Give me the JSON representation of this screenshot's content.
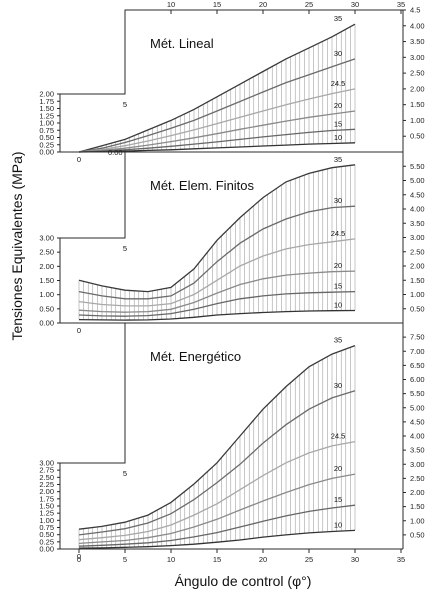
{
  "figure": {
    "ylabel": "Tensiones Equivalentes (MPa)",
    "xlabel": "Ángulo de control (φ°)",
    "top_x_ticks": [
      "10",
      "15",
      "20",
      "25",
      "30",
      "35"
    ],
    "bottom_x_ticks": [
      "0",
      "5",
      "10",
      "15",
      "20",
      "25",
      "30",
      "35"
    ]
  },
  "chart_data": [
    {
      "type": "line",
      "title": "Mét. Lineal",
      "x": [
        0,
        2.5,
        5,
        7.5,
        10,
        12.5,
        15,
        17.5,
        20,
        22.5,
        25,
        27.5,
        30
      ],
      "series": [
        {
          "name": "35",
          "values": [
            0,
            0.2,
            0.4,
            0.7,
            1.0,
            1.35,
            1.75,
            2.15,
            2.55,
            2.95,
            3.3,
            3.65,
            4.05
          ]
        },
        {
          "name": "30",
          "values": [
            0,
            0.12,
            0.3,
            0.52,
            0.75,
            1.0,
            1.3,
            1.6,
            1.9,
            2.2,
            2.45,
            2.7,
            2.95
          ]
        },
        {
          "name": "24.5",
          "values": [
            0,
            0.08,
            0.2,
            0.35,
            0.52,
            0.7,
            0.9,
            1.1,
            1.3,
            1.5,
            1.68,
            1.85,
            2.0
          ]
        },
        {
          "name": "20",
          "values": [
            0,
            0.05,
            0.12,
            0.22,
            0.33,
            0.45,
            0.58,
            0.72,
            0.85,
            0.98,
            1.1,
            1.2,
            1.3
          ]
        },
        {
          "name": "15",
          "values": [
            0,
            0.03,
            0.07,
            0.12,
            0.18,
            0.25,
            0.32,
            0.4,
            0.48,
            0.55,
            0.62,
            0.68,
            0.72
          ]
        },
        {
          "name": "10",
          "values": [
            0,
            0.01,
            0.03,
            0.05,
            0.07,
            0.1,
            0.13,
            0.16,
            0.19,
            0.22,
            0.25,
            0.27,
            0.29
          ]
        }
      ],
      "ylim_left": [
        0,
        2.0
      ],
      "ylim_right": [
        0,
        4.5
      ],
      "yticks_left": [
        "2.00",
        "1.75",
        "1.50",
        "1.25",
        "1.00",
        "0.75",
        "0.50",
        "0.25",
        "0.00"
      ],
      "yticks_right": [
        "4.5",
        "4.00",
        "3.50",
        "3.00",
        "2.50",
        "2.00",
        "1.50",
        "1.00",
        "0.50"
      ],
      "ytick_values_left": [
        2.0,
        1.75,
        1.5,
        1.25,
        1.0,
        0.75,
        0.5,
        0.25,
        0.0
      ],
      "ytick_values_right": [
        4.5,
        4.0,
        3.5,
        3.0,
        2.5,
        2.0,
        1.5,
        1.0,
        0.5
      ],
      "grid": false,
      "hatched_band": true
    },
    {
      "type": "line",
      "title": "Mét. Elem. Finitos",
      "x": [
        0,
        2.5,
        5,
        7.5,
        10,
        12.5,
        15,
        17.5,
        20,
        22.5,
        25,
        27.5,
        30
      ],
      "series": [
        {
          "name": "35",
          "values": [
            1.5,
            1.3,
            1.15,
            1.1,
            1.25,
            1.9,
            2.9,
            3.7,
            4.4,
            4.95,
            5.25,
            5.45,
            5.55
          ]
        },
        {
          "name": "30",
          "values": [
            1.1,
            0.95,
            0.85,
            0.85,
            0.95,
            1.4,
            2.15,
            2.8,
            3.3,
            3.65,
            3.9,
            4.05,
            4.1
          ]
        },
        {
          "name": "24.5",
          "values": [
            0.75,
            0.65,
            0.6,
            0.6,
            0.68,
            1.0,
            1.5,
            2.0,
            2.35,
            2.6,
            2.75,
            2.85,
            2.95
          ]
        },
        {
          "name": "20",
          "values": [
            0.45,
            0.4,
            0.38,
            0.4,
            0.48,
            0.72,
            1.05,
            1.35,
            1.55,
            1.68,
            1.75,
            1.8,
            1.82
          ]
        },
        {
          "name": "15",
          "values": [
            0.28,
            0.25,
            0.24,
            0.26,
            0.33,
            0.48,
            0.68,
            0.85,
            0.95,
            1.02,
            1.06,
            1.08,
            1.1
          ]
        },
        {
          "name": "10",
          "values": [
            0.12,
            0.11,
            0.1,
            0.11,
            0.14,
            0.2,
            0.28,
            0.33,
            0.37,
            0.4,
            0.42,
            0.43,
            0.44
          ]
        }
      ],
      "ylim_left": [
        0,
        3.0
      ],
      "ylim_right": [
        0,
        6.0
      ],
      "yticks_left": [
        "3.00",
        "2.50",
        "2.00",
        "1.50",
        "1.00",
        "0.50",
        "0.00"
      ],
      "yticks_right": [
        "5.50",
        "5.00",
        "4.50",
        "4.00",
        "3.50",
        "3.00",
        "2.50",
        "2.00",
        "1.50",
        "1.00",
        "0.50"
      ],
      "ytick_values_left": [
        3.0,
        2.5,
        2.0,
        1.5,
        1.0,
        0.5,
        0.0
      ],
      "ytick_values_right": [
        5.5,
        5.0,
        4.5,
        4.0,
        3.5,
        3.0,
        2.5,
        2.0,
        1.5,
        1.0,
        0.5
      ],
      "grid": false,
      "hatched_band": true
    },
    {
      "type": "line",
      "title": "Mét. Energético",
      "x": [
        0,
        2.5,
        5,
        7.5,
        10,
        12.5,
        15,
        17.5,
        20,
        22.5,
        25,
        27.5,
        30
      ],
      "series": [
        {
          "name": "35",
          "values": [
            0.7,
            0.8,
            0.95,
            1.2,
            1.65,
            2.3,
            3.05,
            4.0,
            4.95,
            5.75,
            6.45,
            6.9,
            7.2
          ]
        },
        {
          "name": "30",
          "values": [
            0.5,
            0.6,
            0.72,
            0.92,
            1.25,
            1.75,
            2.35,
            3.0,
            3.75,
            4.4,
            4.95,
            5.35,
            5.6
          ]
        },
        {
          "name": "24.5",
          "values": [
            0.33,
            0.4,
            0.48,
            0.62,
            0.85,
            1.2,
            1.6,
            2.1,
            2.6,
            3.05,
            3.4,
            3.65,
            3.8
          ]
        },
        {
          "name": "20",
          "values": [
            0.2,
            0.25,
            0.3,
            0.4,
            0.55,
            0.78,
            1.05,
            1.38,
            1.7,
            2.0,
            2.28,
            2.5,
            2.65
          ]
        },
        {
          "name": "15",
          "values": [
            0.1,
            0.13,
            0.17,
            0.22,
            0.3,
            0.43,
            0.58,
            0.78,
            0.98,
            1.17,
            1.33,
            1.45,
            1.55
          ]
        },
        {
          "name": "10",
          "values": [
            0.03,
            0.04,
            0.06,
            0.08,
            0.12,
            0.17,
            0.24,
            0.32,
            0.42,
            0.5,
            0.57,
            0.62,
            0.66
          ]
        }
      ],
      "ylim_left": [
        0,
        3.0
      ],
      "ylim_right": [
        0,
        8.0
      ],
      "yticks_left": [
        "3.00",
        "2.75",
        "2.50",
        "2.25",
        "2.00",
        "1.75",
        "1.50",
        "1.25",
        "1.00",
        "0.75",
        "0.50",
        "0.25",
        "0.00"
      ],
      "yticks_right": [
        "7.50",
        "7.00",
        "6.50",
        "6.00",
        "5.50",
        "5.00",
        "4.50",
        "4.00",
        "3.50",
        "3.00",
        "2.50",
        "2.00",
        "1.50",
        "1.00",
        "0.50"
      ],
      "ytick_values_left": [
        3.0,
        2.75,
        2.5,
        2.25,
        2.0,
        1.75,
        1.5,
        1.25,
        1.0,
        0.75,
        0.5,
        0.25,
        0.0
      ],
      "ytick_values_right": [
        7.5,
        7.0,
        6.5,
        6.0,
        5.5,
        5.0,
        4.5,
        4.0,
        3.5,
        3.0,
        2.5,
        2.0,
        1.5,
        1.0,
        0.5
      ],
      "grid": false,
      "hatched_band": true
    }
  ],
  "styles": {
    "series_colors": [
      "#3a3a3a",
      "#6b6b6b",
      "#a8a8a8",
      "#8a8a8a",
      "#666666",
      "#333333"
    ],
    "hatch_color": "#8f8f8f",
    "frame_color": "#2a2a2a"
  },
  "labels": {
    "panel2_top_left": "0.00",
    "step_marks": [
      "0",
      "5"
    ]
  }
}
